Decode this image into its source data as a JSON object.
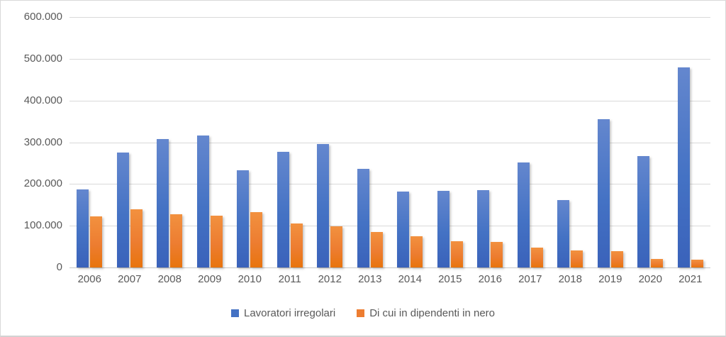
{
  "chart_data": {
    "type": "bar",
    "title": "",
    "xlabel": "",
    "ylabel": "",
    "ylim": [
      0,
      600000
    ],
    "grid": true,
    "legend_position": "bottom",
    "y_tick_labels": [
      "600.000",
      "500.000",
      "400.000",
      "300.000",
      "200.000",
      "100.000",
      "0"
    ],
    "categories": [
      "2006",
      "2007",
      "2008",
      "2009",
      "2010",
      "2011",
      "2012",
      "2013",
      "2014",
      "2015",
      "2016",
      "2017",
      "2018",
      "2019",
      "2020",
      "2021"
    ],
    "series": [
      {
        "name": "Lavoratori irregolari",
        "color": "#4472C4",
        "gradient_top": "#6487CE",
        "gradient_bottom": "#3A62BA",
        "values": [
          187000,
          276000,
          308000,
          317000,
          233000,
          277000,
          295000,
          237000,
          182000,
          184000,
          186000,
          252000,
          162000,
          355000,
          267000,
          479000
        ]
      },
      {
        "name": "Di cui in dipendenti in nero",
        "color": "#ED7D31",
        "gradient_top": "#F2913F",
        "gradient_bottom": "#E8740D",
        "values": [
          123000,
          140000,
          128000,
          124000,
          132000,
          105000,
          98000,
          85000,
          75000,
          63000,
          61000,
          47000,
          41000,
          40000,
          21000,
          19000
        ]
      }
    ]
  },
  "colors": {
    "gridline": "#D9D9D9",
    "axis_line": "#C8C8C8",
    "label_text": "#595959",
    "chart_border": "#D9D9D9",
    "background": "#FFFFFF"
  }
}
